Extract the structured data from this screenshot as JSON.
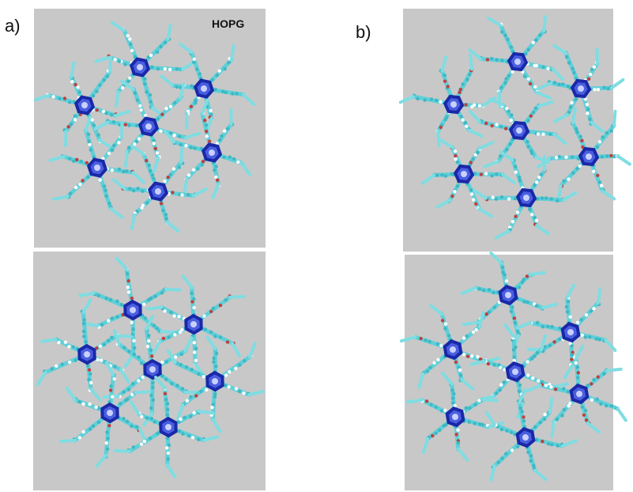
{
  "panels": {
    "a": {
      "label": "a)",
      "substrate": "HOPG"
    },
    "b": {
      "label": "b)"
    }
  }
}
